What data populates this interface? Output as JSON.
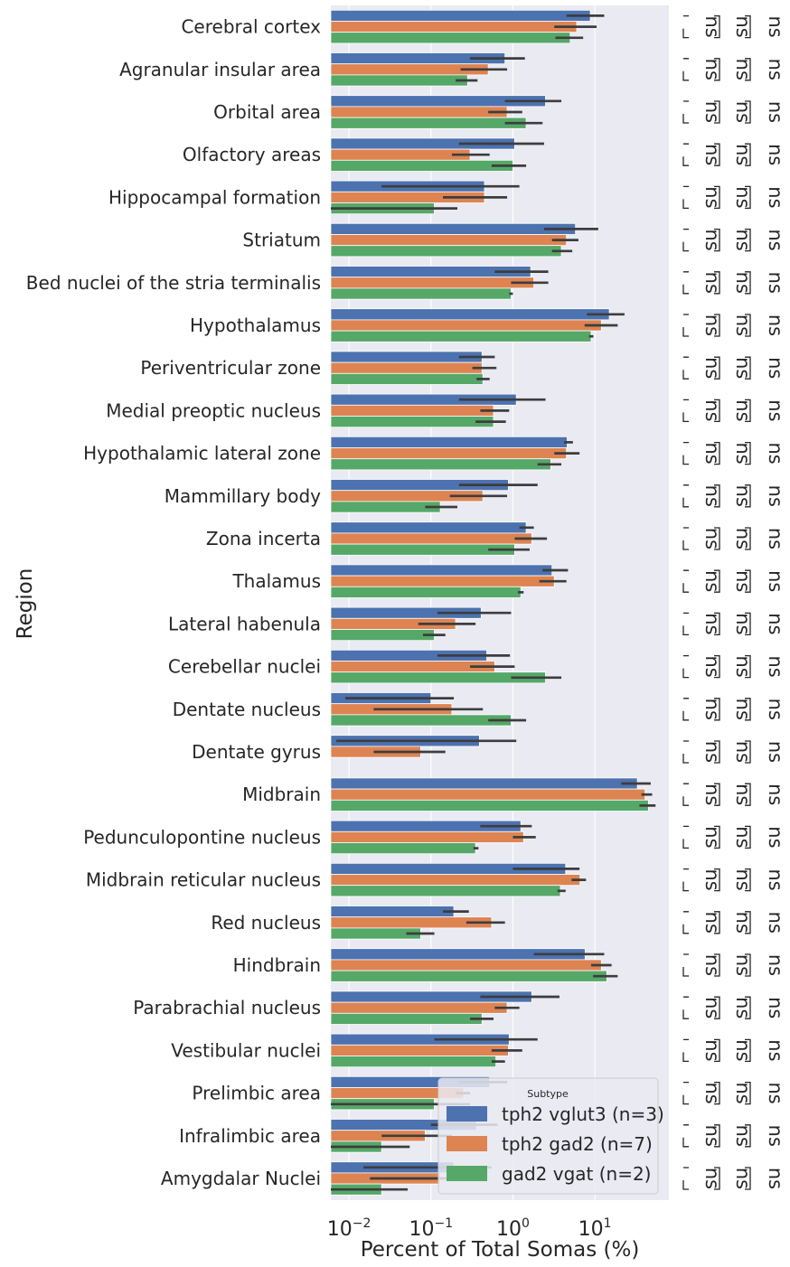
{
  "chart_data": {
    "type": "bar",
    "orientation": "horizontal",
    "xscale": "log",
    "xlim": [
      0.006,
      80
    ],
    "xticks": [
      0.01,
      0.1,
      1,
      10
    ],
    "xtick_labels": [
      {
        "base": "10",
        "exp": "−2"
      },
      {
        "base": "10",
        "exp": "−1"
      },
      {
        "base": "10",
        "exp": "0"
      },
      {
        "base": "10",
        "exp": "1"
      }
    ],
    "xlabel": "Percent of Total Somas (%)",
    "ylabel": "Region",
    "grid": true,
    "categories": [
      "Cerebral cortex",
      "Agranular insular area",
      "Orbital area",
      "Olfactory areas",
      "Hippocampal formation",
      "Striatum",
      "Bed nuclei of the stria terminalis",
      "Hypothalamus",
      "Periventricular zone",
      "Medial preoptic nucleus",
      "Hypothalamic lateral zone",
      "Mammillary body",
      "Zona incerta",
      "Thalamus",
      "Lateral habenula",
      "Cerebellar nuclei",
      "Dentate nucleus",
      "Dentate gyrus",
      "Midbrain",
      "Pedunculopontine nucleus",
      "Midbrain reticular nucleus",
      "Red nucleus",
      "Hindbrain",
      "Parabrachial nucleus",
      "Vestibular nuclei",
      "Prelimbic area",
      "Infralimbic area",
      "Amygdalar Nuclei"
    ],
    "series": [
      {
        "name": "tph2 vglut3 (n=3)",
        "color": "#4c72b0",
        "values": [
          8.8,
          0.8,
          2.5,
          1.05,
          0.45,
          5.8,
          1.65,
          15.0,
          0.42,
          1.1,
          4.6,
          0.88,
          1.45,
          3.0,
          0.41,
          0.48,
          0.1,
          0.39,
          33.0,
          1.25,
          4.4,
          0.19,
          7.6,
          1.7,
          0.9,
          0.52,
          0.36,
          0.19
        ],
        "err_low": [
          4.5,
          0.3,
          0.8,
          0.22,
          0.025,
          2.4,
          0.6,
          8.0,
          0.22,
          0.22,
          4.2,
          0.22,
          1.2,
          2.3,
          0.12,
          0.12,
          0.009,
          0.007,
          21.0,
          0.4,
          1.0,
          0.14,
          1.8,
          0.4,
          0.11,
          0.22,
          0.1,
          0.015
        ],
        "err_high": [
          13.0,
          1.4,
          3.9,
          2.4,
          1.2,
          11.0,
          2.7,
          23.0,
          0.6,
          2.5,
          5.4,
          2.0,
          1.8,
          4.7,
          0.95,
          0.92,
          0.19,
          1.1,
          48.0,
          1.7,
          6.5,
          0.29,
          13.0,
          3.7,
          2.0,
          0.85,
          0.65,
          0.55
        ]
      },
      {
        "name": "tph2 gad2 (n=7)",
        "color": "#dd8452",
        "values": [
          6.0,
          0.5,
          0.85,
          0.3,
          0.45,
          4.5,
          1.8,
          12.0,
          0.42,
          0.58,
          4.5,
          0.43,
          1.7,
          3.2,
          0.2,
          0.6,
          0.18,
          0.075,
          41.0,
          1.35,
          6.6,
          0.55,
          12.0,
          0.85,
          0.88,
          0.25,
          0.085,
          0.13
        ],
        "err_low": [
          3.2,
          0.23,
          0.5,
          0.18,
          0.14,
          3.0,
          0.95,
          7.5,
          0.32,
          0.4,
          3.2,
          0.17,
          1.05,
          2.1,
          0.07,
          0.3,
          0.02,
          0.02,
          37.0,
          1.0,
          5.2,
          0.27,
          9.0,
          0.6,
          0.55,
          0.2,
          0.025,
          0.018
        ],
        "err_high": [
          10.5,
          0.85,
          1.3,
          0.52,
          0.85,
          6.3,
          2.7,
          19.0,
          0.63,
          0.9,
          6.5,
          0.85,
          2.6,
          4.5,
          0.35,
          1.05,
          0.43,
          0.15,
          50.0,
          1.9,
          7.8,
          0.8,
          16.0,
          1.2,
          1.3,
          0.3,
          0.18,
          0.3
        ]
      },
      {
        "name": "gad2 vgat (n=2)",
        "color": "#55a868",
        "values": [
          5.0,
          0.28,
          1.45,
          1.0,
          0.11,
          3.9,
          0.95,
          9.0,
          0.43,
          0.58,
          2.9,
          0.13,
          1.05,
          1.25,
          0.11,
          2.5,
          0.95,
          null,
          45.0,
          0.35,
          3.8,
          0.075,
          14.0,
          0.42,
          0.62,
          0.11,
          0.025,
          0.025
        ],
        "err_low": [
          3.3,
          0.2,
          0.8,
          0.55,
          0.006,
          3.0,
          0.9,
          8.5,
          0.36,
          0.35,
          2.0,
          0.085,
          0.5,
          1.15,
          0.08,
          0.95,
          0.5,
          null,
          35.0,
          0.33,
          3.5,
          0.05,
          9.5,
          0.3,
          0.55,
          0.006,
          0.006,
          0.006
        ],
        "err_high": [
          7.2,
          0.37,
          2.3,
          1.45,
          0.21,
          5.3,
          1.0,
          9.6,
          0.52,
          0.82,
          3.9,
          0.21,
          1.6,
          1.35,
          0.15,
          3.9,
          1.45,
          null,
          55.0,
          0.38,
          4.4,
          0.11,
          19.0,
          0.58,
          0.8,
          0.3,
          0.055,
          0.052
        ]
      }
    ],
    "annotations": {
      "label": "ns",
      "columns": 3
    },
    "legend": {
      "title": "Subtype",
      "position": "lower right"
    }
  }
}
